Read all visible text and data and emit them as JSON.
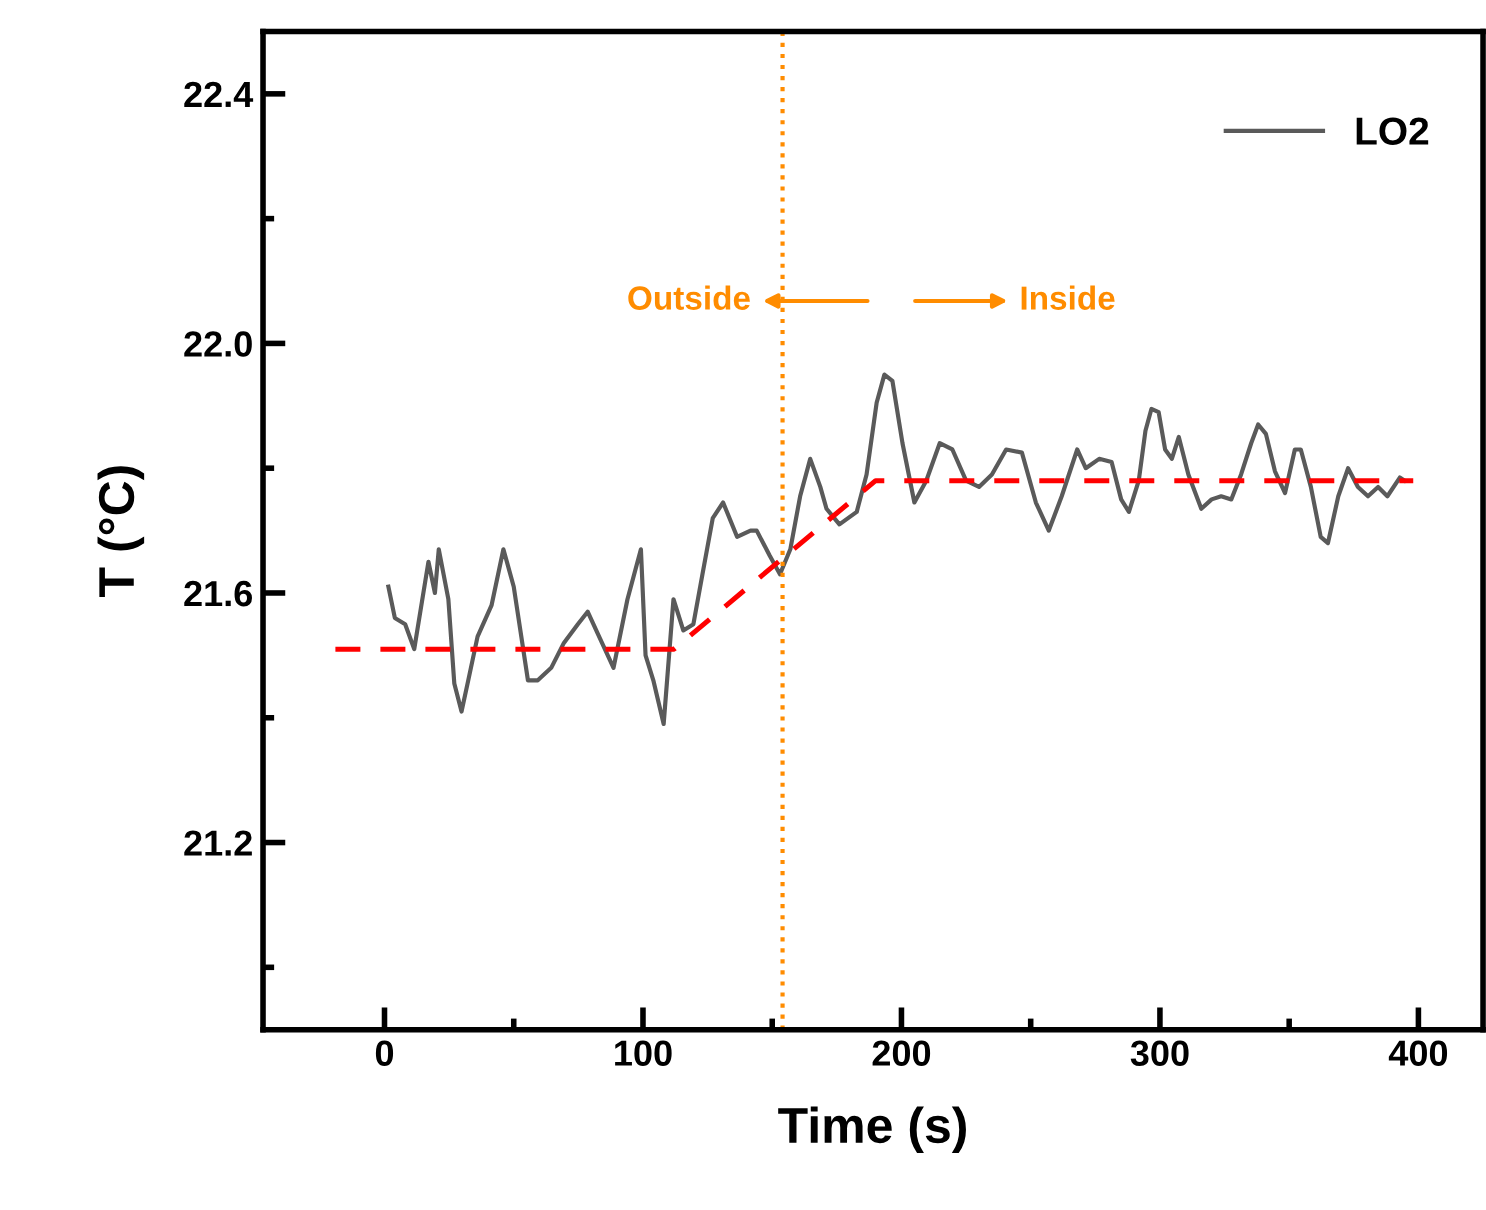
{
  "chart_data": {
    "type": "line",
    "xlabel": "Time (s)",
    "ylabel": "T (°C)",
    "xlim": [
      -47,
      425
    ],
    "ylim": [
      20.9,
      22.5
    ],
    "xticks": [
      0,
      {
        "value": 50,
        "label": null
      },
      100,
      {
        "value": 150,
        "label": null
      },
      200,
      {
        "value": 250,
        "label": null
      },
      300,
      {
        "value": 350,
        "label": null
      },
      400
    ],
    "yticks": [
      {
        "value": 21.0,
        "label": null
      },
      21.2,
      {
        "value": 21.4,
        "label": null
      },
      21.6,
      {
        "value": 21.8,
        "label": null
      },
      {
        "value": 22.0,
        "label": "22.0"
      },
      {
        "value": 22.2,
        "label": null
      },
      22.4
    ],
    "grid": false,
    "legend": "top right",
    "series": [
      {
        "name": "LO2",
        "color": "#5a5a5a",
        "line_style": "solid",
        "x": [
          1.5,
          4,
          8,
          11.5,
          17,
          19.5,
          21,
          24.7,
          27,
          29.8,
          32.4,
          36,
          41.4,
          46,
          50,
          55.5,
          59.3,
          64.5,
          69.4,
          74.8,
          78.6,
          82.5,
          88.6,
          94,
          99.2,
          101,
          104,
          108,
          111.8,
          115.6,
          119.5,
          123,
          127,
          131,
          136.4,
          141.6,
          144,
          149,
          153,
          157,
          160.8,
          164.7,
          168.6,
          171,
          176,
          182.7,
          186.5,
          190.4,
          193.4,
          196.5,
          200.4,
          205,
          209.6,
          214.8,
          219.7,
          225,
          230,
          235,
          240.5,
          246.6,
          252,
          257,
          262,
          268,
          271.3,
          276.5,
          281.3,
          285,
          288,
          291.8,
          294.4,
          296.7,
          299.5,
          302,
          304.6,
          307.3,
          311,
          316,
          320,
          323.7,
          327.6,
          331.4,
          335.3,
          338,
          341,
          344.5,
          348.4,
          352.2,
          354.5,
          358.4,
          362.2,
          365,
          369,
          372.8,
          376.6,
          380.5,
          384.4,
          388,
          392.8,
          394.6
        ],
        "values": [
          21.61,
          21.56,
          21.55,
          21.51,
          21.65,
          21.6,
          21.67,
          21.59,
          21.455,
          21.41,
          21.46,
          21.53,
          21.58,
          21.67,
          21.61,
          21.46,
          21.46,
          21.48,
          21.52,
          21.55,
          21.57,
          21.535,
          21.48,
          21.59,
          21.67,
          21.5,
          21.46,
          21.39,
          21.59,
          21.54,
          21.55,
          21.63,
          21.72,
          21.745,
          21.69,
          21.7,
          21.7,
          21.66,
          21.63,
          21.67,
          21.755,
          21.815,
          21.77,
          21.735,
          21.71,
          21.73,
          21.79,
          21.905,
          21.95,
          21.94,
          21.84,
          21.745,
          21.78,
          21.84,
          21.83,
          21.78,
          21.77,
          21.79,
          21.83,
          21.825,
          21.745,
          21.7,
          21.755,
          21.83,
          21.8,
          21.815,
          21.81,
          21.75,
          21.73,
          21.78,
          21.86,
          21.895,
          21.89,
          21.83,
          21.815,
          21.85,
          21.79,
          21.735,
          21.75,
          21.755,
          21.75,
          21.79,
          21.84,
          21.87,
          21.855,
          21.795,
          21.76,
          21.83,
          21.83,
          21.77,
          21.69,
          21.68,
          21.755,
          21.8,
          21.77,
          21.755,
          21.77,
          21.755,
          21.785,
          21.78
        ]
      },
      {
        "color": "#ff0000",
        "line_style": "dashed",
        "x": [
          -19,
          112,
          190,
          398
        ],
        "values": [
          21.51,
          21.51,
          21.78,
          21.78
        ]
      }
    ],
    "ref_lines": [
      {
        "axis": "x",
        "value": 154,
        "color": "#ff8c00",
        "line_style": "dotted"
      }
    ],
    "annotations": [
      "Outside",
      "Inside"
    ]
  }
}
